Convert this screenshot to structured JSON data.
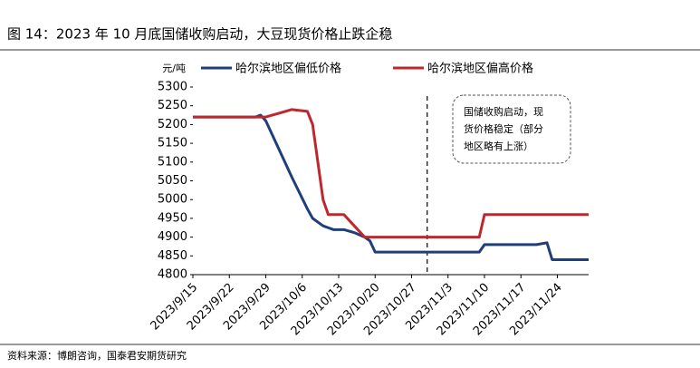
{
  "chart_data": {
    "type": "line",
    "title": "图 14：2023 年 10 月底国储收购启动，大豆现货价格止跌企稳",
    "y_unit": "元/吨",
    "source": "资料来源：博朗咨询，国泰君安期货研究",
    "annotation": [
      "国储收购启动，现",
      "货价格稳定（部分",
      "地区略有上涨）"
    ],
    "divider_x": "2023/10/30",
    "xlim": [
      "2023/9/15",
      "2023/11/30"
    ],
    "xticks": [
      "2023/9/15",
      "2023/9/22",
      "2023/9/29",
      "2023/10/6",
      "2023/10/13",
      "2023/10/20",
      "2023/10/27",
      "2023/11/3",
      "2023/11/10",
      "2023/11/17",
      "2023/11/24"
    ],
    "ylim": [
      4800,
      5300
    ],
    "yticks": [
      4800,
      4850,
      4900,
      4950,
      5000,
      5050,
      5100,
      5150,
      5200,
      5250,
      5300
    ],
    "x": [
      "2023/9/15",
      "2023/9/27",
      "2023/9/28",
      "2023/9/29",
      "2023/10/2",
      "2023/10/4",
      "2023/10/7",
      "2023/10/8",
      "2023/10/10",
      "2023/10/11",
      "2023/10/12",
      "2023/10/14",
      "2023/10/16",
      "2023/10/18",
      "2023/10/19",
      "2023/10/20",
      "2023/10/24",
      "2023/11/9",
      "2023/11/10",
      "2023/11/20",
      "2023/11/22",
      "2023/11/23",
      "2023/11/30"
    ],
    "series": [
      {
        "name": "哈尔滨地区偏低价格",
        "color": "#1f3f7a",
        "values": [
          5220,
          5220,
          5225,
          5210,
          5120,
          5060,
          4975,
          4950,
          4930,
          4925,
          4920,
          4920,
          4912,
          4900,
          4890,
          4860,
          4860,
          4860,
          4880,
          4880,
          4885,
          4840,
          4840
        ]
      },
      {
        "name": "哈尔滨地区偏高价格",
        "color": "#c0272d",
        "values": [
          5220,
          5220,
          5220,
          5220,
          5232,
          5240,
          5235,
          5200,
          5000,
          4960,
          4960,
          4960,
          4930,
          4900,
          4900,
          4900,
          4900,
          4900,
          4960,
          4960,
          4960,
          4960,
          4960
        ]
      }
    ]
  }
}
